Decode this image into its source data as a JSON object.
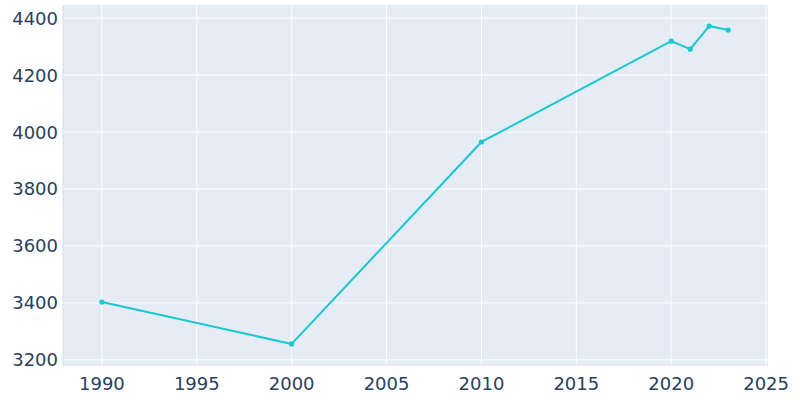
{
  "chart_data": {
    "type": "line",
    "x": [
      1990,
      2000,
      2010,
      2020,
      2021,
      2022,
      2023
    ],
    "values": [
      3403,
      3256,
      3965,
      4319,
      4291,
      4372,
      4358
    ],
    "color": "#17c8cf",
    "marker": "circle",
    "xlim": [
      1987.95,
      2025.1
    ],
    "xticks": [
      1990,
      1995,
      2000,
      2005,
      2010,
      2015,
      2020,
      2025
    ],
    "ylim": [
      3182,
      4446
    ],
    "yticks": [
      3200,
      3400,
      3600,
      3800,
      4000,
      4200,
      4400
    ],
    "grid": true
  }
}
